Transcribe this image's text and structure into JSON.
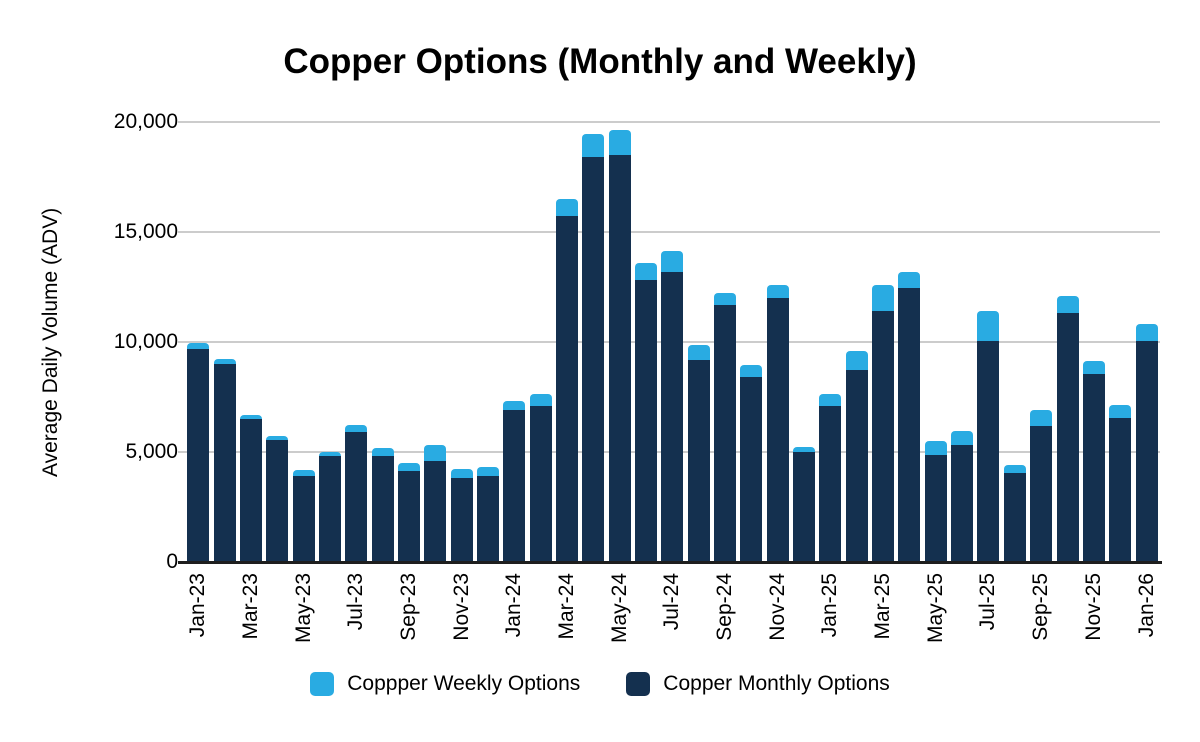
{
  "title": "Copper Options (Monthly and Weekly)",
  "y_axis": {
    "label": "Average Daily Volume (ADV)",
    "ticks": [
      "20,000",
      "15,000",
      "10,000",
      "5,000",
      "0"
    ],
    "max": 20000
  },
  "x_axis": {
    "tick_every": 2,
    "shown_labels": [
      "Jan-23",
      "Mar-23",
      "May-23",
      "Jul-23",
      "Sep-23",
      "Nov-23",
      "Jan-24",
      "Mar-24",
      "May-24",
      "Jul-24",
      "Sep-24",
      "Nov-24",
      "Jan-25",
      "Mar-25",
      "May-25",
      "Jul-25",
      "Sep-25",
      "Nov-25",
      "Jan-26"
    ]
  },
  "legend": {
    "items": [
      {
        "label": "Coppper Weekly Options",
        "series": "weekly",
        "color": "#29abe2"
      },
      {
        "label": "Copper Monthly Options",
        "series": "monthly",
        "color": "#14304f"
      }
    ]
  },
  "colors": {
    "weekly": "#29abe2",
    "monthly": "#14304f",
    "gridline": "#cccccc",
    "axis_line": "#1e1e1e"
  },
  "chart_data": {
    "type": "bar",
    "stacked": true,
    "title": "Copper Options (Monthly and Weekly)",
    "xlabel": "",
    "ylabel": "Average Daily Volume (ADV)",
    "ylim": [
      0,
      20000
    ],
    "grid": true,
    "legend_position": "bottom",
    "categories": [
      "Jan-23",
      "Feb-23",
      "Mar-23",
      "Apr-23",
      "May-23",
      "Jun-23",
      "Jul-23",
      "Aug-23",
      "Sep-23",
      "Oct-23",
      "Nov-23",
      "Dec-23",
      "Jan-24",
      "Feb-24",
      "Mar-24",
      "Apr-24",
      "May-24",
      "Jun-24",
      "Jul-24",
      "Aug-24",
      "Sep-24",
      "Oct-24",
      "Nov-24",
      "Dec-24",
      "Jan-25",
      "Feb-25",
      "Mar-25",
      "Apr-25",
      "May-25",
      "Jun-25",
      "Jul-25",
      "Aug-25",
      "Sep-25",
      "Oct-25",
      "Nov-25",
      "Dec-25",
      "Jan-26"
    ],
    "series": [
      {
        "name": "Copper Monthly Options",
        "color": "#14304f",
        "values": [
          9700,
          9000,
          6500,
          5550,
          3900,
          4800,
          5900,
          4800,
          4150,
          4600,
          3800,
          3900,
          6900,
          7100,
          15750,
          18400,
          18500,
          12800,
          13200,
          9200,
          11700,
          8400,
          12000,
          5000,
          7100,
          8750,
          11400,
          12450,
          4850,
          5300,
          10050,
          4050,
          6200,
          11300,
          8550,
          6550,
          10050
        ]
      },
      {
        "name": "Coppper Weekly Options",
        "color": "#29abe2",
        "values": [
          250,
          250,
          200,
          200,
          300,
          200,
          350,
          400,
          350,
          700,
          450,
          400,
          400,
          550,
          750,
          1050,
          1150,
          800,
          950,
          650,
          550,
          550,
          600,
          250,
          550,
          850,
          1200,
          750,
          650,
          650,
          1350,
          350,
          700,
          800,
          600,
          600,
          750
        ]
      }
    ]
  }
}
